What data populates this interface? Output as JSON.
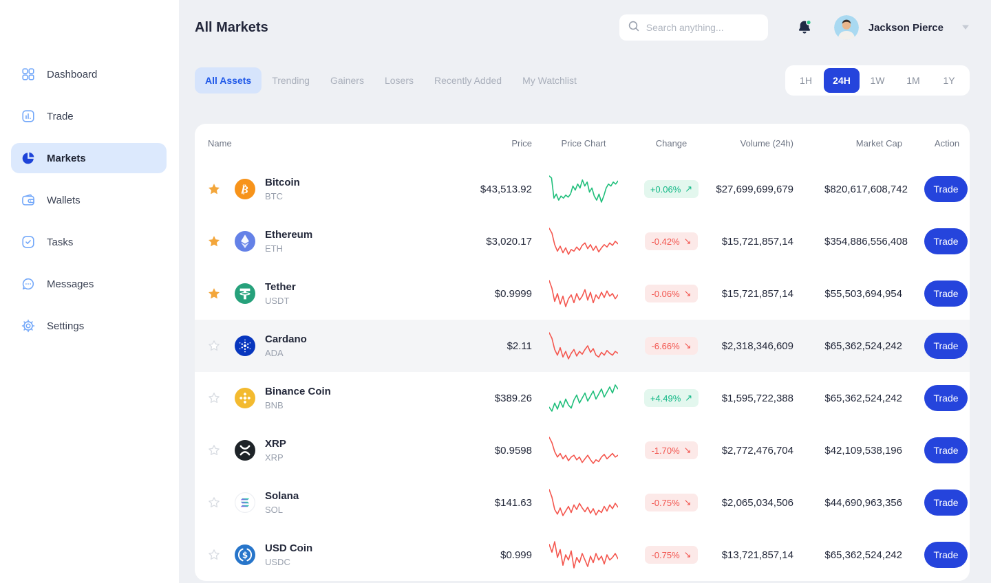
{
  "sidebar": {
    "items": [
      {
        "label": "Dashboard",
        "icon": "dashboard-icon",
        "active": false
      },
      {
        "label": "Trade",
        "icon": "trade-icon",
        "active": false
      },
      {
        "label": "Markets",
        "icon": "markets-icon",
        "active": true
      },
      {
        "label": "Wallets",
        "icon": "wallets-icon",
        "active": false
      },
      {
        "label": "Tasks",
        "icon": "tasks-icon",
        "active": false
      },
      {
        "label": "Messages",
        "icon": "messages-icon",
        "active": false
      },
      {
        "label": "Settings",
        "icon": "settings-icon",
        "active": false
      }
    ]
  },
  "header": {
    "title": "All Markets",
    "search_placeholder": "Search anything...",
    "user_name": "Jackson Pierce"
  },
  "tabs": [
    {
      "label": "All Assets",
      "active": true
    },
    {
      "label": "Trending",
      "active": false
    },
    {
      "label": "Gainers",
      "active": false
    },
    {
      "label": "Losers",
      "active": false
    },
    {
      "label": "Recently Added",
      "active": false
    },
    {
      "label": "My Watchlist",
      "active": false
    }
  ],
  "timeframes": [
    {
      "label": "1H",
      "active": false
    },
    {
      "label": "24H",
      "active": true
    },
    {
      "label": "1W",
      "active": false
    },
    {
      "label": "1M",
      "active": false
    },
    {
      "label": "1Y",
      "active": false
    }
  ],
  "table": {
    "columns": [
      "Name",
      "Price",
      "Price Chart",
      "Change",
      "Volume (24h)",
      "Market Cap",
      "Action"
    ],
    "action_label": "Trade",
    "rows": [
      {
        "name": "Bitcoin",
        "symbol": "BTC",
        "price": "$43,513.92",
        "change": "+0.06%",
        "direction": "up",
        "volume": "$27,699,699,679",
        "market_cap": "$820,617,608,742",
        "favorite": true,
        "highlighted": false,
        "sparkline": [
          28,
          26,
          6,
          10,
          4,
          8,
          6,
          9,
          7,
          10,
          18,
          14,
          20,
          16,
          24,
          18,
          22,
          12,
          16,
          8,
          4,
          10,
          2,
          8,
          16,
          20,
          18,
          22,
          20,
          23
        ]
      },
      {
        "name": "Ethereum",
        "symbol": "ETH",
        "price": "$3,020.17",
        "change": "-0.42%",
        "direction": "down",
        "volume": "$15,721,857,14",
        "market_cap": "$354,886,556,408",
        "favorite": true,
        "highlighted": false,
        "sparkline": [
          36,
          30,
          16,
          8,
          14,
          6,
          12,
          4,
          10,
          8,
          13,
          9,
          15,
          18,
          11,
          16,
          9,
          14,
          7,
          12,
          16,
          13,
          18,
          15,
          20,
          17
        ]
      },
      {
        "name": "Tether",
        "symbol": "USDT",
        "price": "$0.9999",
        "change": "-0.06%",
        "direction": "down",
        "volume": "$15,721,857,14",
        "market_cap": "$55,503,694,954",
        "favorite": true,
        "highlighted": false,
        "sparkline": [
          24,
          18,
          8,
          14,
          6,
          12,
          4,
          10,
          13,
          7,
          14,
          9,
          12,
          17,
          9,
          15,
          7,
          13,
          10,
          15,
          11,
          16,
          12,
          14,
          10,
          13
        ]
      },
      {
        "name": "Cardano",
        "symbol": "ADA",
        "price": "$2.11",
        "change": "-6.66%",
        "direction": "down",
        "volume": "$2,318,346,609",
        "market_cap": "$65,362,524,242",
        "favorite": false,
        "highlighted": true,
        "sparkline": [
          30,
          24,
          12,
          6,
          14,
          4,
          10,
          2,
          8,
          12,
          5,
          10,
          7,
          12,
          16,
          9,
          13,
          6,
          4,
          9,
          6,
          11,
          8,
          6,
          10,
          8
        ]
      },
      {
        "name": "Binance Coin",
        "symbol": "BNB",
        "price": "$389.26",
        "change": "+4.49%",
        "direction": "up",
        "volume": "$1,595,722,388",
        "market_cap": "$65,362,524,242",
        "favorite": false,
        "highlighted": false,
        "sparkline": [
          8,
          4,
          12,
          6,
          14,
          8,
          16,
          10,
          7,
          15,
          20,
          12,
          17,
          22,
          14,
          19,
          24,
          16,
          21,
          26,
          18,
          23,
          28,
          22,
          30,
          26
        ]
      },
      {
        "name": "XRP",
        "symbol": "XRP",
        "price": "$0.9598",
        "change": "-1.70%",
        "direction": "down",
        "volume": "$2,772,476,704",
        "market_cap": "$42,109,538,196",
        "favorite": false,
        "highlighted": false,
        "sparkline": [
          34,
          28,
          18,
          12,
          16,
          10,
          14,
          8,
          12,
          14,
          9,
          12,
          6,
          10,
          14,
          9,
          5,
          9,
          7,
          12,
          15,
          10,
          13,
          16,
          12,
          14
        ]
      },
      {
        "name": "Solana",
        "symbol": "SOL",
        "price": "$141.63",
        "change": "-0.75%",
        "direction": "down",
        "volume": "$2,065,034,506",
        "market_cap": "$44,690,963,356",
        "favorite": false,
        "highlighted": false,
        "sparkline": [
          36,
          26,
          10,
          4,
          12,
          2,
          8,
          14,
          6,
          16,
          10,
          18,
          12,
          7,
          13,
          5,
          11,
          3,
          9,
          6,
          14,
          8,
          16,
          11,
          18,
          13
        ]
      },
      {
        "name": "USD Coin",
        "symbol": "USDC",
        "price": "$0.999",
        "change": "-0.75%",
        "direction": "down",
        "volume": "$13,721,857,14",
        "market_cap": "$65,362,524,242",
        "favorite": false,
        "highlighted": false,
        "sparkline": [
          22,
          16,
          24,
          12,
          18,
          6,
          14,
          10,
          17,
          4,
          12,
          8,
          15,
          10,
          5,
          13,
          8,
          15,
          10,
          13,
          7,
          14,
          10,
          12,
          15,
          11
        ]
      }
    ]
  },
  "colors": {
    "accent_blue": "#2544DC",
    "spark_up": "#1EBE7A",
    "spark_down": "#F4564E",
    "badge_up_text": "#12B886",
    "badge_down_text": "#F2544E",
    "star_gold": "#F3A63B"
  },
  "glyphs": {
    "arrow_up": "↗",
    "arrow_down": "↘"
  }
}
